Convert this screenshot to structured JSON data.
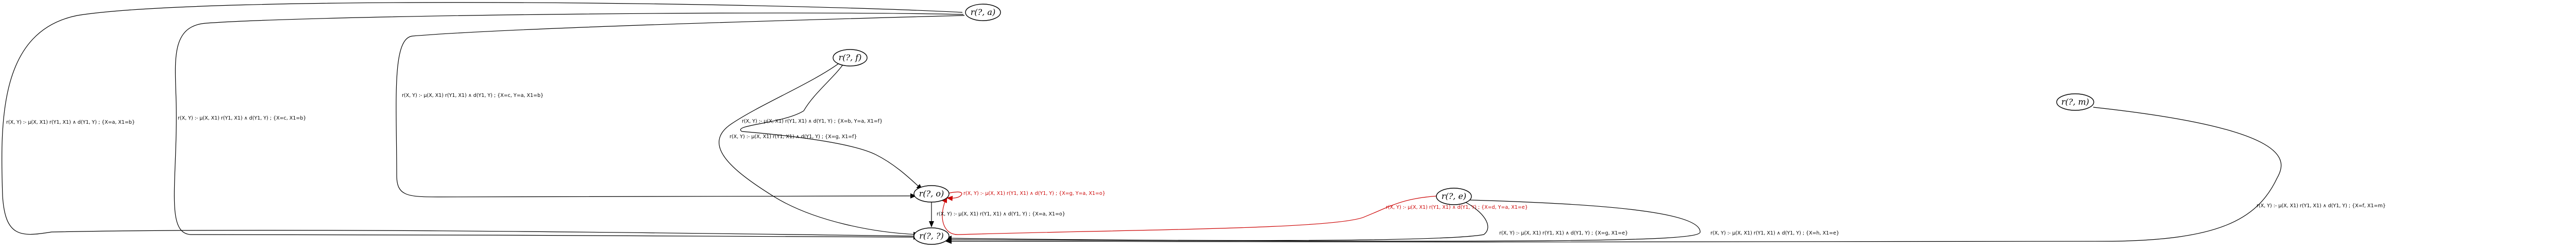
{
  "colors": {
    "default": "#000000",
    "highlight": "#cc0000"
  },
  "nodes": [
    {
      "id": "a",
      "label": "r(?, a)"
    },
    {
      "id": "f",
      "label": "r(?, f)"
    },
    {
      "id": "m",
      "label": "r(?, m)"
    },
    {
      "id": "e",
      "label": "r(?, e)"
    },
    {
      "id": "o",
      "label": "r(?, o)"
    },
    {
      "id": "t",
      "label": "r(?, ?)"
    }
  ],
  "edges": [
    {
      "from": "a",
      "to": "t",
      "label": "r(X, Y) :- μ(X, X1) r(Y1, X1) ∧ d(Y1, Y) ; {X=a, X1=b}",
      "color": "default"
    },
    {
      "from": "a",
      "to": "t",
      "label": "r(X, Y) :- μ(X, X1) r(Y1, X1) ∧ d(Y1, Y) ; {X=c, X1=b}",
      "color": "default"
    },
    {
      "from": "a",
      "to": "o",
      "label": "r(X, Y) :- μ(X, X1) r(Y1, X1) ∧ d(Y1, Y) ; {X=c, Y=a, X1=b}",
      "color": "default"
    },
    {
      "from": "f",
      "to": "o",
      "label": "r(X, Y) :- μ(X, X1) r(Y1, X1) ∧ d(Y1, Y) ; {X=b, Y=a, X1=f}",
      "color": "default"
    },
    {
      "from": "f",
      "to": "t",
      "label": "r(X, Y) :- μ(X, X1) r(Y1, X1) ∧ d(Y1, Y) ; {X=g, X1=f}",
      "color": "default"
    },
    {
      "from": "e",
      "to": "o",
      "label": "r(X, Y) :- μ(X, X1) r(Y1, X1) ∧ d(Y1, Y) ; {X=d, Y=a, X1=e}",
      "color": "highlight"
    },
    {
      "from": "e",
      "to": "t",
      "label": "r(X, Y) :- μ(X, X1) r(Y1, X1) ∧ d(Y1, Y) ; {X=g, X1=e}",
      "color": "default"
    },
    {
      "from": "e",
      "to": "t",
      "label": "r(X, Y) :- μ(X, X1) r(Y1, X1) ∧ d(Y1, Y) ; {X=h, X1=e}",
      "color": "default"
    },
    {
      "from": "o",
      "to": "o",
      "label": "r(X, Y) :- μ(X, X1) r(Y1, X1) ∧ d(Y1, Y) ; {X=g, Y=a, X1=o}",
      "color": "highlight"
    },
    {
      "from": "o",
      "to": "t",
      "label": "r(X, Y) :- μ(X, X1) r(Y1, X1) ∧ d(Y1, Y) ; {X=a, X1=o}",
      "color": "default"
    },
    {
      "from": "m",
      "to": "t",
      "label": "r(X, Y) :- μ(X, X1) r(Y1, X1) ∧ d(Y1, Y) ; {X=f, X1=m}",
      "color": "default"
    }
  ]
}
